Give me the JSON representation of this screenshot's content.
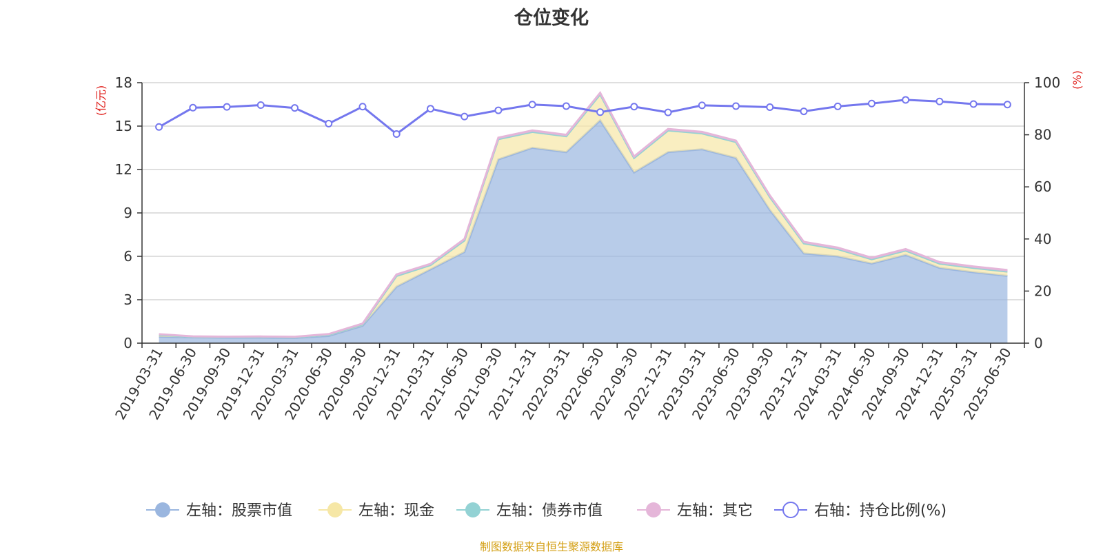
{
  "chart_data": {
    "type": "area",
    "title": "仓位变化",
    "source_note": "制图数据来自恒生聚源数据库",
    "left_axis": {
      "unit": "(亿元)",
      "ticks": [
        0,
        3,
        6,
        9,
        12,
        15,
        18
      ],
      "ylim": [
        0,
        18
      ]
    },
    "right_axis": {
      "unit": "(%)",
      "ticks": [
        0,
        20,
        40,
        60,
        80,
        100
      ],
      "ylim": [
        0,
        100
      ]
    },
    "categories": [
      "2019-03-31",
      "2019-06-30",
      "2019-09-30",
      "2019-12-31",
      "2020-03-31",
      "2020-06-30",
      "2020-09-30",
      "2020-12-31",
      "2021-03-31",
      "2021-06-30",
      "2021-09-30",
      "2021-12-31",
      "2022-03-31",
      "2022-06-30",
      "2022-09-30",
      "2022-12-31",
      "2023-03-31",
      "2023-06-30",
      "2023-09-30",
      "2023-12-31",
      "2024-03-31",
      "2024-06-30",
      "2024-09-30",
      "2024-12-31",
      "2025-03-31",
      "2025-06-30"
    ],
    "series": [
      {
        "name": "左轴：股票市值",
        "axis": "left",
        "stack": true,
        "color": "#9ab6df",
        "values": [
          0.45,
          0.4,
          0.38,
          0.38,
          0.36,
          0.5,
          1.2,
          3.9,
          5.1,
          6.3,
          12.7,
          13.5,
          13.2,
          15.4,
          11.8,
          13.2,
          13.4,
          12.8,
          9.2,
          6.2,
          6.0,
          5.5,
          6.1,
          5.2,
          4.9,
          4.65
        ]
      },
      {
        "name": "左轴：现金",
        "axis": "left",
        "stack": true,
        "color": "#f6e7a6",
        "values": [
          0.12,
          0.05,
          0.05,
          0.06,
          0.06,
          0.08,
          0.1,
          0.75,
          0.3,
          0.8,
          1.4,
          1.1,
          1.1,
          1.8,
          1.0,
          1.5,
          1.1,
          1.1,
          0.9,
          0.7,
          0.5,
          0.3,
          0.3,
          0.3,
          0.3,
          0.3
        ]
      },
      {
        "name": "左轴：债券市值",
        "axis": "left",
        "stack": true,
        "color": "#93d2d4",
        "values": [
          0,
          0,
          0,
          0,
          0,
          0,
          0,
          0,
          0,
          0,
          0,
          0,
          0,
          0,
          0,
          0,
          0,
          0,
          0,
          0,
          0,
          0,
          0,
          0,
          0,
          0
        ]
      },
      {
        "name": "左轴：其它",
        "axis": "left",
        "stack": true,
        "color": "#e5b6d9",
        "values": [
          0.05,
          0.02,
          0.02,
          0.02,
          0.02,
          0.05,
          0.05,
          0.1,
          0.08,
          0.1,
          0.1,
          0.1,
          0.1,
          0.1,
          0.1,
          0.1,
          0.1,
          0.1,
          0.1,
          0.1,
          0.1,
          0.1,
          0.1,
          0.1,
          0.1,
          0.1
        ]
      },
      {
        "name": "右轴：持仓比例(%)",
        "axis": "right",
        "stack": false,
        "color": "#7477ee",
        "values": [
          83.0,
          90.4,
          90.7,
          91.4,
          90.3,
          84.3,
          90.8,
          80.3,
          90.0,
          87.0,
          89.4,
          91.6,
          91.0,
          88.7,
          90.8,
          88.6,
          91.3,
          91.0,
          90.6,
          89.0,
          90.9,
          92.0,
          93.4,
          92.8,
          91.8,
          91.6
        ]
      }
    ],
    "grid": true,
    "legend_position": "bottom"
  }
}
